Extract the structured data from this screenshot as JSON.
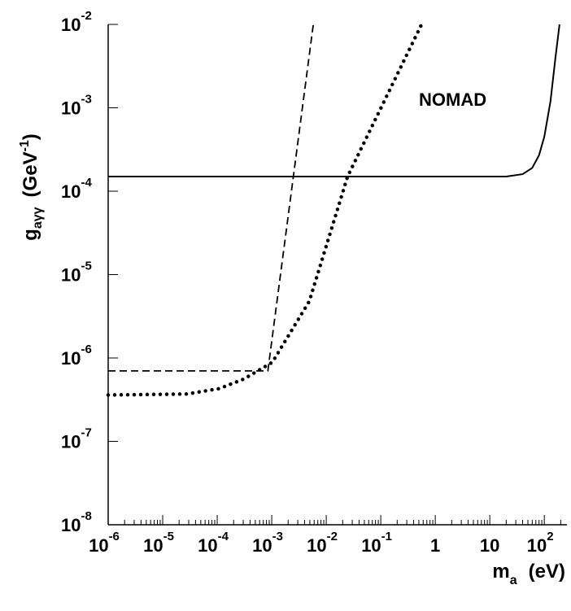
{
  "chart_data": {
    "type": "line",
    "x_label": {
      "main": "m",
      "sub": "a",
      "unit": "(eV)"
    },
    "y_label": {
      "main": "g",
      "sub": "aγγ",
      "unit": "(GeV",
      "sup": "-1",
      "end": ")"
    },
    "annotation": "NOMAD",
    "log_x": true,
    "log_y": true,
    "xlim": [
      1e-06,
      260
    ],
    "ylim": [
      1e-08,
      0.01
    ],
    "xticks": [
      {
        "value": 1e-06,
        "label": "10",
        "sup": "-6"
      },
      {
        "value": 1e-05,
        "label": "10",
        "sup": "-5"
      },
      {
        "value": 0.0001,
        "label": "10",
        "sup": "-4"
      },
      {
        "value": 0.001,
        "label": "10",
        "sup": "-3"
      },
      {
        "value": 0.01,
        "label": "10",
        "sup": "-2"
      },
      {
        "value": 0.1,
        "label": "10",
        "sup": "-1"
      },
      1,
      10,
      {
        "value": 100,
        "label": "10",
        "sup": "2"
      }
    ],
    "yticks": [
      {
        "value": 1e-08,
        "label": "10",
        "sup": "-8"
      },
      {
        "value": 1e-07,
        "label": "10",
        "sup": "-7"
      },
      {
        "value": 1e-06,
        "label": "10",
        "sup": "-6"
      },
      {
        "value": 1e-05,
        "label": "10",
        "sup": "-5"
      },
      {
        "value": 0.0001,
        "label": "10",
        "sup": "-4"
      },
      {
        "value": 0.001,
        "label": "10",
        "sup": "-3"
      },
      {
        "value": 0.01,
        "label": "10",
        "sup": "-2"
      }
    ],
    "series": [
      {
        "name": "NOMAD",
        "color": "#000000",
        "style": "solid",
        "x": [
          1e-06,
          20,
          40,
          60,
          80,
          100,
          130,
          160,
          190
        ],
        "values": [
          0.00015,
          0.00015,
          0.00016,
          0.00019,
          0.00027,
          0.00045,
          0.0012,
          0.004,
          0.01
        ]
      },
      {
        "color": "#000000",
        "style": "dashed",
        "x": [
          1e-06,
          0.00085,
          0.0058
        ],
        "values": [
          7e-07,
          7e-07,
          0.01
        ]
      },
      {
        "color": "#000000",
        "style": "dotted",
        "x": [
          1e-06,
          2.8e-05,
          0.00011,
          0.00031,
          0.00103,
          0.0049,
          0.0246,
          0.56
        ],
        "values": [
          3.6e-07,
          3.7e-07,
          4.3e-07,
          5.6e-07,
          8.9e-07,
          4.8e-06,
          0.00015,
          0.01
        ]
      }
    ]
  }
}
